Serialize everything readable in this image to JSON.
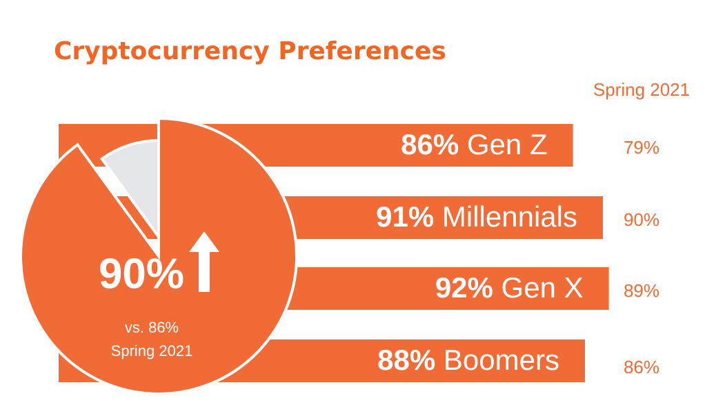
{
  "title": "Cryptocurrency Preferences",
  "chart_data": [
    {
      "type": "pie",
      "values": [
        90,
        10
      ],
      "value_labels": [
        "90%",
        null
      ],
      "colors": [
        "#f06b35",
        "#e4e6ea"
      ],
      "comparison": "vs. 86%",
      "comparison_period": "Spring 2021"
    },
    {
      "type": "bar",
      "orientation": "horizontal",
      "color": "#f06b35",
      "categories": [
        "Gen Z",
        "Millennials",
        "Gen X",
        "Boomers"
      ],
      "values": [
        86,
        91,
        92,
        88
      ],
      "value_labels": [
        "86%",
        "91%",
        "92%",
        "88%"
      ],
      "comparison_title": "Spring 2021",
      "comparison_values": [
        79,
        90,
        89,
        86
      ],
      "comparison_labels": [
        "79%",
        "90%",
        "89%",
        "86%"
      ]
    }
  ]
}
